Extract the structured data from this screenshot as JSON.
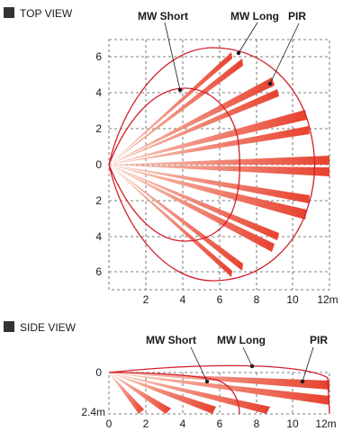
{
  "top_view": {
    "title": "TOP VIEW",
    "labels": {
      "mw_short": "MW Short",
      "mw_long": "MW Long",
      "pir": "PIR"
    },
    "y_ticks": [
      "6",
      "4",
      "2",
      "0",
      "2",
      "4",
      "6"
    ],
    "x_ticks": [
      "2",
      "4",
      "6",
      "8",
      "10",
      "12m"
    ]
  },
  "side_view": {
    "title": "SIDE VIEW",
    "labels": {
      "mw_short": "MW Short",
      "mw_long": "MW Long",
      "pir": "PIR"
    },
    "y_ticks": [
      "0",
      "2.4m"
    ],
    "x_ticks": [
      "0",
      "2",
      "4",
      "6",
      "8",
      "10",
      "12m"
    ]
  },
  "colors": {
    "outline": "#d21e2a",
    "beam_near": "#f9d2c2",
    "beam_far": "#e8412f",
    "square": "#333333"
  }
}
